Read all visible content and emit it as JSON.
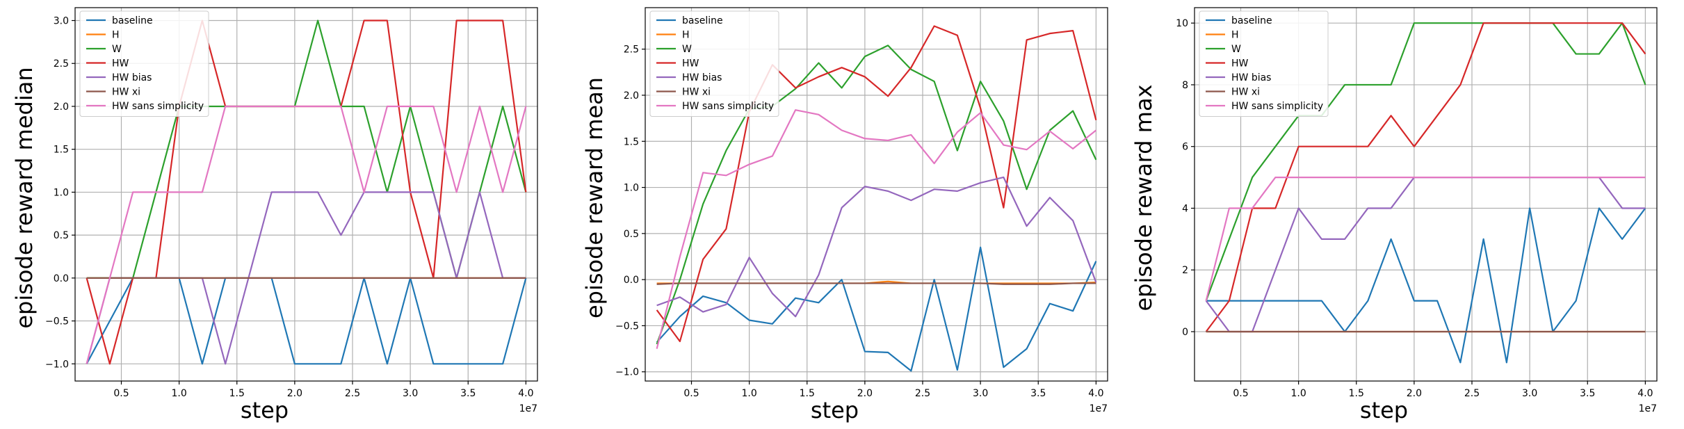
{
  "colors": {
    "baseline": "#1f77b4",
    "H": "#ff7f0e",
    "W": "#2ca02c",
    "HW": "#d62728",
    "HW bias": "#9467bd",
    "HW xi": "#8c564b",
    "HW sans simplicity": "#e377c2"
  },
  "chart_data": [
    {
      "type": "line",
      "title": "",
      "xlabel": "step",
      "ylabel": "episode reward median",
      "x_offset_label": "1e7",
      "xlim": [
        1.0,
        41.0
      ],
      "ylim": [
        -1.2,
        3.15
      ],
      "x_ticks": [
        0.5,
        1.0,
        1.5,
        2.0,
        2.5,
        3.0,
        3.5,
        4.0
      ],
      "y_ticks": [
        -1.0,
        -0.5,
        0.0,
        0.5,
        1.0,
        1.5,
        2.0,
        2.5,
        3.0
      ],
      "y_tick_labels": [
        "−1.0",
        "−0.5",
        "0.0",
        "0.5",
        "1.0",
        "1.5",
        "2.0",
        "2.5",
        "3.0"
      ],
      "grid": true,
      "legend_position": "top-left",
      "x": [
        2000000,
        4000000,
        6000000,
        8000000,
        10000000,
        12000000,
        14000000,
        16000000,
        18000000,
        20000000,
        22000000,
        24000000,
        26000000,
        28000000,
        30000000,
        32000000,
        34000000,
        36000000,
        38000000,
        40000000
      ],
      "series": [
        {
          "name": "baseline",
          "values": [
            -1,
            -0.5,
            0,
            0,
            0,
            -1,
            0,
            0,
            0,
            -1,
            -1,
            -1,
            0,
            -1,
            0,
            -1,
            -1,
            -1,
            -1,
            0
          ]
        },
        {
          "name": "H",
          "values": [
            0,
            0,
            0,
            0,
            0,
            0,
            0,
            0,
            0,
            0,
            0,
            0,
            0,
            0,
            0,
            0,
            0,
            0,
            0,
            0
          ]
        },
        {
          "name": "W",
          "values": [
            0,
            0,
            0,
            1,
            2,
            2,
            2,
            2,
            2,
            2,
            3,
            2,
            2,
            1,
            2,
            1,
            0,
            1,
            2,
            1
          ]
        },
        {
          "name": "HW",
          "values": [
            0,
            -1,
            0,
            0,
            2,
            3,
            2,
            2,
            2,
            2,
            2,
            2,
            3,
            3,
            1,
            0,
            3,
            3,
            3,
            1
          ]
        },
        {
          "name": "HW bias",
          "values": [
            -1,
            0,
            0,
            0,
            0,
            0,
            -1,
            0,
            1,
            1,
            1,
            0.5,
            1,
            1,
            1,
            1,
            0,
            1,
            0,
            0
          ]
        },
        {
          "name": "HW xi",
          "values": [
            0,
            0,
            0,
            0,
            0,
            0,
            0,
            0,
            0,
            0,
            0,
            0,
            0,
            0,
            0,
            0,
            0,
            0,
            0,
            0
          ]
        },
        {
          "name": "HW sans simplicity",
          "values": [
            -1,
            0,
            1,
            1,
            1,
            1,
            2,
            2,
            2,
            2,
            2,
            2,
            1,
            2,
            2,
            2,
            1,
            2,
            1,
            2
          ]
        }
      ]
    },
    {
      "type": "line",
      "title": "",
      "xlabel": "step",
      "ylabel": "episode reward mean",
      "x_offset_label": "1e7",
      "xlim": [
        1.0,
        41.0
      ],
      "ylim": [
        -1.1,
        2.95
      ],
      "x_ticks": [
        0.5,
        1.0,
        1.5,
        2.0,
        2.5,
        3.0,
        3.5,
        4.0
      ],
      "y_ticks": [
        -1.0,
        -0.5,
        0.0,
        0.5,
        1.0,
        1.5,
        2.0,
        2.5
      ],
      "y_tick_labels": [
        "−1.0",
        "−0.5",
        "0.0",
        "0.5",
        "1.0",
        "1.5",
        "2.0",
        "2.5"
      ],
      "grid": true,
      "legend_position": "top-left",
      "x": [
        2000000,
        4000000,
        6000000,
        8000000,
        10000000,
        12000000,
        14000000,
        16000000,
        18000000,
        20000000,
        22000000,
        24000000,
        26000000,
        28000000,
        30000000,
        32000000,
        34000000,
        36000000,
        38000000,
        40000000
      ],
      "series": [
        {
          "name": "baseline",
          "values": [
            -0.68,
            -0.4,
            -0.18,
            -0.25,
            -0.44,
            -0.48,
            -0.2,
            -0.25,
            0.0,
            -0.78,
            -0.79,
            -0.99,
            0.0,
            -0.98,
            0.35,
            -0.95,
            -0.75,
            -0.26,
            -0.34,
            0.2
          ]
        },
        {
          "name": "H",
          "values": [
            -0.04,
            -0.04,
            -0.04,
            -0.04,
            -0.04,
            -0.04,
            -0.04,
            -0.04,
            -0.04,
            -0.04,
            -0.02,
            -0.04,
            -0.04,
            -0.04,
            -0.04,
            -0.04,
            -0.04,
            -0.04,
            -0.04,
            -0.03
          ]
        },
        {
          "name": "W",
          "values": [
            -0.7,
            0.0,
            0.82,
            1.4,
            1.85,
            1.88,
            2.07,
            2.35,
            2.08,
            2.42,
            2.54,
            2.28,
            2.15,
            1.4,
            2.15,
            1.72,
            0.98,
            1.62,
            1.83,
            1.3
          ]
        },
        {
          "name": "HW",
          "values": [
            -0.33,
            -0.67,
            0.22,
            0.55,
            1.82,
            2.33,
            2.08,
            2.2,
            2.3,
            2.2,
            1.99,
            2.3,
            2.75,
            2.65,
            1.86,
            0.78,
            2.6,
            2.67,
            2.7,
            1.73
          ]
        },
        {
          "name": "HW bias",
          "values": [
            -0.28,
            -0.19,
            -0.35,
            -0.27,
            0.24,
            -0.15,
            -0.4,
            0.05,
            0.78,
            1.01,
            0.96,
            0.86,
            0.98,
            0.96,
            1.05,
            1.11,
            0.58,
            0.89,
            0.64,
            -0.03
          ]
        },
        {
          "name": "HW xi",
          "values": [
            -0.05,
            -0.04,
            -0.04,
            -0.04,
            -0.04,
            -0.04,
            -0.04,
            -0.04,
            -0.04,
            -0.04,
            -0.04,
            -0.04,
            -0.04,
            -0.04,
            -0.04,
            -0.05,
            -0.05,
            -0.05,
            -0.04,
            -0.04
          ]
        },
        {
          "name": "HW sans simplicity",
          "values": [
            -0.75,
            0.25,
            1.16,
            1.13,
            1.25,
            1.34,
            1.84,
            1.79,
            1.62,
            1.53,
            1.51,
            1.57,
            1.26,
            1.6,
            1.81,
            1.46,
            1.41,
            1.61,
            1.42,
            1.62
          ]
        }
      ]
    },
    {
      "type": "line",
      "title": "",
      "xlabel": "step",
      "ylabel": "episode reward max",
      "x_offset_label": "1e7",
      "xlim": [
        1.0,
        41.0
      ],
      "ylim": [
        -1.6,
        10.5
      ],
      "x_ticks": [
        0.5,
        1.0,
        1.5,
        2.0,
        2.5,
        3.0,
        3.5,
        4.0
      ],
      "y_ticks": [
        0,
        2,
        4,
        6,
        8,
        10
      ],
      "y_tick_labels": [
        "0",
        "2",
        "4",
        "6",
        "8",
        "10"
      ],
      "grid": true,
      "legend_position": "top-left",
      "x": [
        2000000,
        4000000,
        6000000,
        8000000,
        10000000,
        12000000,
        14000000,
        16000000,
        18000000,
        20000000,
        22000000,
        24000000,
        26000000,
        28000000,
        30000000,
        32000000,
        34000000,
        36000000,
        38000000,
        40000000
      ],
      "series": [
        {
          "name": "baseline",
          "values": [
            1,
            1,
            1,
            1,
            1,
            1,
            0,
            1,
            3,
            1,
            1,
            -1,
            3,
            -1,
            4,
            0,
            1,
            4,
            3,
            4
          ]
        },
        {
          "name": "H",
          "values": [
            0,
            0,
            0,
            0,
            0,
            0,
            0,
            0,
            0,
            0,
            0,
            0,
            0,
            0,
            0,
            0,
            0,
            0,
            0,
            0
          ]
        },
        {
          "name": "W",
          "values": [
            1,
            3,
            5,
            6,
            7,
            7,
            8,
            8,
            8,
            10,
            10,
            10,
            10,
            10,
            10,
            10,
            9,
            9,
            10,
            8
          ]
        },
        {
          "name": "HW",
          "values": [
            0,
            1,
            4,
            4,
            6,
            6,
            6,
            6,
            7,
            6,
            7,
            8,
            10,
            10,
            10,
            10,
            10,
            10,
            10,
            9
          ]
        },
        {
          "name": "HW bias",
          "values": [
            1,
            0,
            0,
            2,
            4,
            3,
            3,
            4,
            4,
            5,
            5,
            5,
            5,
            5,
            5,
            5,
            5,
            5,
            4,
            4
          ]
        },
        {
          "name": "HW xi",
          "values": [
            0,
            0,
            0,
            0,
            0,
            0,
            0,
            0,
            0,
            0,
            0,
            0,
            0,
            0,
            0,
            0,
            0,
            0,
            0,
            0
          ]
        },
        {
          "name": "HW sans simplicity",
          "values": [
            1,
            4,
            4,
            5,
            5,
            5,
            5,
            5,
            5,
            5,
            5,
            5,
            5,
            5,
            5,
            5,
            5,
            5,
            5,
            5
          ]
        }
      ]
    }
  ]
}
